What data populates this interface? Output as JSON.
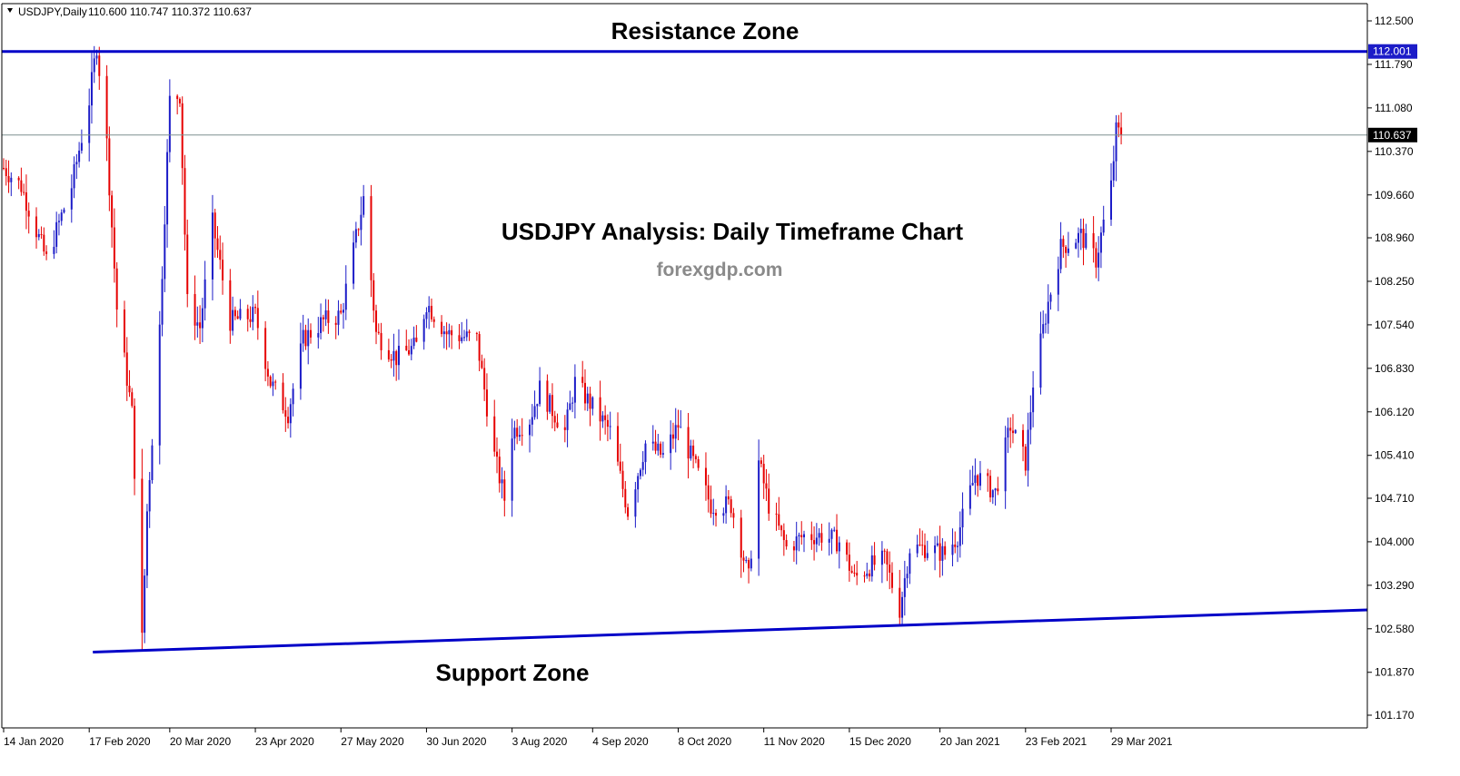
{
  "header": {
    "symbol_label": "USDJPY,Daily",
    "ohlc_label": "110.600 110.747 110.372 110.637"
  },
  "colors": {
    "bull": "#1c1cc8",
    "bear": "#e60000",
    "line": "#0000c8",
    "price_line": "#7f8f8f",
    "label_bg": "#1c1cc8",
    "current_bg": "#000000"
  },
  "chart_data": {
    "type": "candlestick",
    "title": "USDJPY Analysis: Daily Timeframe Chart",
    "subtitle": "forexgdp.com",
    "y_ticks": [
      "112.500",
      "111.790",
      "111.080",
      "110.370",
      "109.660",
      "108.960",
      "108.250",
      "107.540",
      "106.830",
      "106.120",
      "105.410",
      "104.710",
      "104.000",
      "103.290",
      "102.580",
      "101.870",
      "101.170"
    ],
    "x_ticks": [
      "14 Jan 2020",
      "17 Feb 2020",
      "20 Mar 2020",
      "23 Apr 2020",
      "27 May 2020",
      "30 Jun 2020",
      "3 Aug 2020",
      "4 Sep 2020",
      "8 Oct 2020",
      "11 Nov 2020",
      "15 Dec 2020",
      "20 Jan 2021",
      "23 Feb 2021",
      "29 Mar 2021"
    ],
    "resistance": {
      "label": "Resistance Zone",
      "value": 112.001,
      "value_label": "112.001"
    },
    "support": {
      "label": "Support Zone",
      "start": [
        "17 Feb 2020",
        102.2
      ],
      "end": [
        "29 Mar 2021",
        102.75
      ]
    },
    "current_price": {
      "value": 110.637,
      "value_label": "110.637"
    },
    "anchors": [
      [
        "14 Jan 2020",
        110.1
      ],
      [
        "21 Jan 2020",
        109.8
      ],
      [
        "31 Jan 2020",
        108.6
      ],
      [
        "10 Feb 2020",
        109.8
      ],
      [
        "17 Feb 2020",
        111.2
      ],
      [
        "20 Feb 2020",
        112.1
      ],
      [
        "24 Feb 2020",
        110.5
      ],
      [
        "28 Feb 2020",
        107.8
      ],
      [
        "5 Mar 2020",
        106.1
      ],
      [
        "9 Mar 2020",
        102.4
      ],
      [
        "11 Mar 2020",
        104.5
      ],
      [
        "16 Mar 2020",
        107.5
      ],
      [
        "20 Mar 2020",
        111.2
      ],
      [
        "24 Mar 2020",
        111.3
      ],
      [
        "27 Mar 2020",
        107.9
      ],
      [
        "1 Apr 2020",
        107.5
      ],
      [
        "6 Apr 2020",
        109.2
      ],
      [
        "13 Apr 2020",
        107.6
      ],
      [
        "23 Apr 2020",
        107.7
      ],
      [
        "29 Apr 2020",
        106.6
      ],
      [
        "6 May 2020",
        106.1
      ],
      [
        "12 May 2020",
        107.3
      ],
      [
        "20 May 2020",
        107.6
      ],
      [
        "27 May 2020",
        107.7
      ],
      [
        "5 Jun 2020",
        109.6
      ],
      [
        "10 Jun 2020",
        107.4
      ],
      [
        "18 Jun 2020",
        107.0
      ],
      [
        "26 Jun 2020",
        107.2
      ],
      [
        "30 Jun 2020",
        107.9
      ],
      [
        "8 Jul 2020",
        107.4
      ],
      [
        "20 Jul 2020",
        107.3
      ],
      [
        "27 Jul 2020",
        105.4
      ],
      [
        "31 Jul 2020",
        104.7
      ],
      [
        "3 Aug 2020",
        105.8
      ],
      [
        "10 Aug 2020",
        106.0
      ],
      [
        "14 Aug 2020",
        106.5
      ],
      [
        "24 Aug 2020",
        105.8
      ],
      [
        "28 Aug 2020",
        106.6
      ],
      [
        "4 Sep 2020",
        106.2
      ],
      [
        "11 Sep 2020",
        105.8
      ],
      [
        "18 Sep 2020",
        104.5
      ],
      [
        "25 Sep 2020",
        105.6
      ],
      [
        "2 Oct 2020",
        105.4
      ],
      [
        "8 Oct 2020",
        105.9
      ],
      [
        "15 Oct 2020",
        105.2
      ],
      [
        "21 Oct 2020",
        104.6
      ],
      [
        "29 Oct 2020",
        104.6
      ],
      [
        "5 Nov 2020",
        103.4
      ],
      [
        "9 Nov 2020",
        105.3
      ],
      [
        "13 Nov 2020",
        104.6
      ],
      [
        "20 Nov 2020",
        103.9
      ],
      [
        "27 Nov 2020",
        104.1
      ],
      [
        "4 Dec 2020",
        104.1
      ],
      [
        "11 Dec 2020",
        104.0
      ],
      [
        "17 Dec 2020",
        103.4
      ],
      [
        "23 Dec 2020",
        103.6
      ],
      [
        "29 Dec 2020",
        103.7
      ],
      [
        "4 Jan 2021",
        102.9
      ],
      [
        "8 Jan 2021",
        103.9
      ],
      [
        "15 Jan 2021",
        103.9
      ],
      [
        "22 Jan 2021",
        103.8
      ],
      [
        "27 Jan 2021",
        104.1
      ],
      [
        "3 Feb 2021",
        105.1
      ],
      [
        "11 Feb 2021",
        104.8
      ],
      [
        "17 Feb 2021",
        105.9
      ],
      [
        "23 Feb 2021",
        105.3
      ],
      [
        "26 Feb 2021",
        106.6
      ],
      [
        "4 Mar 2021",
        107.9
      ],
      [
        "9 Mar 2021",
        108.8
      ],
      [
        "17 Mar 2021",
        109.0
      ],
      [
        "23 Mar 2021",
        108.6
      ],
      [
        "29 Mar 2021",
        109.8
      ],
      [
        "31 Mar 2021",
        110.7
      ],
      [
        "2 Apr 2021",
        110.637
      ]
    ]
  }
}
